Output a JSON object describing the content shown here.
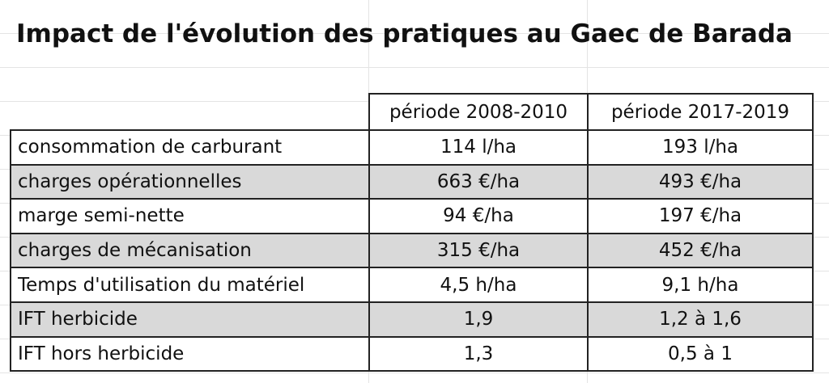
{
  "header": {
    "title": "Impact de l'évolution des pratiques au Gaec de Barada"
  },
  "table": {
    "columns": [
      "période 2008-2010",
      "période 2017-2019"
    ],
    "rows": [
      [
        "consommation de carburant",
        "114 l/ha",
        "193 l/ha"
      ],
      [
        "charges opérationnelles",
        "663 €/ha",
        "493 €/ha"
      ],
      [
        "marge semi-nette",
        "94 €/ha",
        "197 €/ha"
      ],
      [
        "charges de mécanisation",
        "315 €/ha",
        "452 €/ha"
      ],
      [
        "Temps d'utilisation du matériel",
        "4,5 h/ha",
        "9,1 h/ha"
      ],
      [
        "IFT herbicide",
        "1,9",
        "1,2 à 1,6"
      ],
      [
        "IFT hors herbicide",
        "1,3",
        "0,5 à 1"
      ]
    ]
  }
}
